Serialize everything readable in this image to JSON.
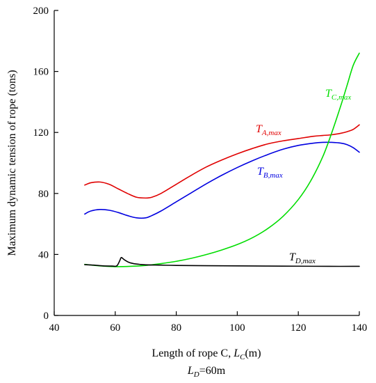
{
  "chart_data": {
    "type": "line",
    "title": "",
    "xlabel": "Length of rope C, ",
    "xlabel_symbol": "L",
    "xlabel_symbol_sub": "C",
    "xlabel_unit": "(m)",
    "ylabel": "Maximum dynamic tension of rope (tons)",
    "xlim": [
      40,
      140
    ],
    "ylim": [
      0,
      200
    ],
    "xticks": [
      "40",
      "60",
      "80",
      "100",
      "120",
      "140"
    ],
    "yticks": [
      "0",
      "40",
      "80",
      "120",
      "160",
      "200"
    ],
    "grid": false,
    "note": {
      "symbol": "L",
      "sub": "D",
      "text": "=60m"
    },
    "series": [
      {
        "label_main": "T",
        "label_sub": "A,max",
        "color": "#e00000",
        "x": [
          50,
          52,
          55,
          58,
          61,
          64,
          67,
          70,
          72,
          75,
          80,
          85,
          90,
          95,
          100,
          105,
          110,
          115,
          120,
          125,
          128,
          131,
          134,
          136,
          138,
          140
        ],
        "y": [
          85.5,
          87,
          87.5,
          86,
          83,
          80,
          77.5,
          77,
          77.5,
          80,
          86,
          92,
          97.5,
          102,
          106,
          109.5,
          112.5,
          114.5,
          116,
          117.5,
          118,
          118.5,
          119.5,
          120.5,
          122,
          125
        ]
      },
      {
        "label_main": "T",
        "label_sub": "B,max",
        "color": "#0000e0",
        "x": [
          50,
          52,
          55,
          58,
          61,
          64,
          67,
          70,
          72,
          75,
          80,
          85,
          90,
          95,
          100,
          105,
          110,
          115,
          120,
          125,
          128,
          131,
          134,
          136,
          138,
          140
        ],
        "y": [
          66.5,
          68.5,
          69.5,
          69,
          67.5,
          65.5,
          64,
          64,
          65.5,
          68.5,
          74.5,
          80.5,
          86.5,
          92,
          97,
          101.5,
          105.5,
          109,
          111.5,
          113,
          113.5,
          113.5,
          113,
          112,
          110,
          107
        ]
      },
      {
        "label_main": "T",
        "label_sub": "C,max",
        "color": "#00dd00",
        "x": [
          50,
          55,
          60,
          65,
          70,
          75,
          80,
          85,
          90,
          95,
          100,
          105,
          110,
          115,
          120,
          124,
          128,
          131,
          134,
          136,
          138,
          140
        ],
        "y": [
          33.5,
          32.5,
          32,
          32.2,
          32.8,
          34,
          35.5,
          37.5,
          40,
          43,
          46.5,
          51,
          57,
          65,
          76,
          88,
          104,
          120,
          138,
          151,
          164,
          172
        ]
      },
      {
        "label_main": "T",
        "label_sub": "D,max",
        "color": "#000000",
        "x": [
          50,
          53,
          56,
          59,
          60.5,
          61.5,
          62,
          63,
          64.5,
          66,
          68,
          70,
          75,
          80,
          90,
          100,
          110,
          120,
          130,
          140
        ],
        "y": [
          33.3,
          33,
          32.5,
          32.4,
          32.5,
          36,
          38,
          36.5,
          34.8,
          34,
          33.5,
          33.2,
          33,
          32.8,
          32.6,
          32.5,
          32.4,
          32.3,
          32.2,
          32.2
        ]
      }
    ]
  }
}
